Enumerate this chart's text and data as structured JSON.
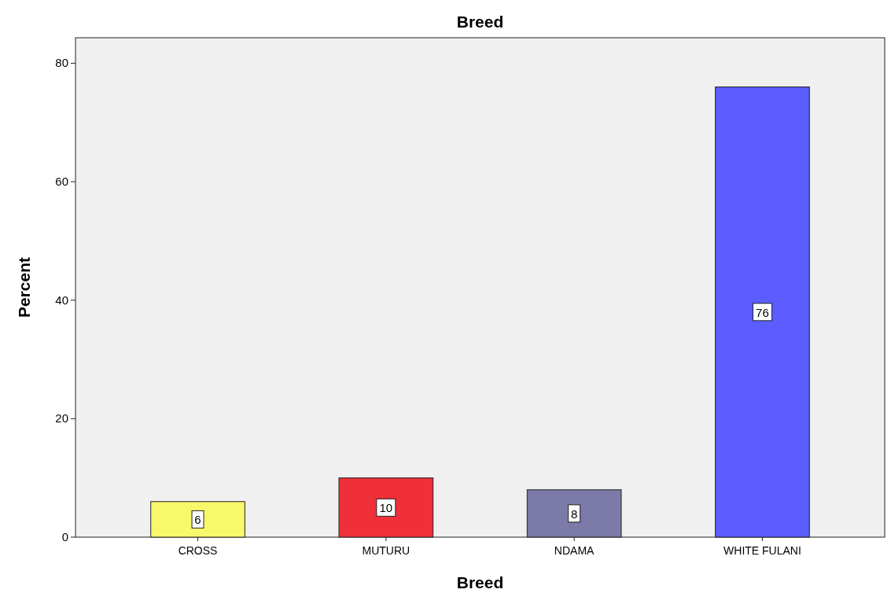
{
  "chart_data": {
    "type": "bar",
    "title": "Breed",
    "xlabel": "Breed",
    "ylabel": "Percent",
    "categories": [
      "CROSS",
      "MUTURU",
      "NDAMA",
      "WHITE FULANI"
    ],
    "values": [
      6,
      10,
      8,
      76
    ],
    "colors": [
      "#f8f86a",
      "#ef3038",
      "#7b7aa8",
      "#5b5dff"
    ],
    "ylim": [
      0,
      84.3
    ],
    "yticks": [
      0,
      20,
      40,
      60,
      80
    ],
    "grid": false,
    "data_labels": true
  }
}
